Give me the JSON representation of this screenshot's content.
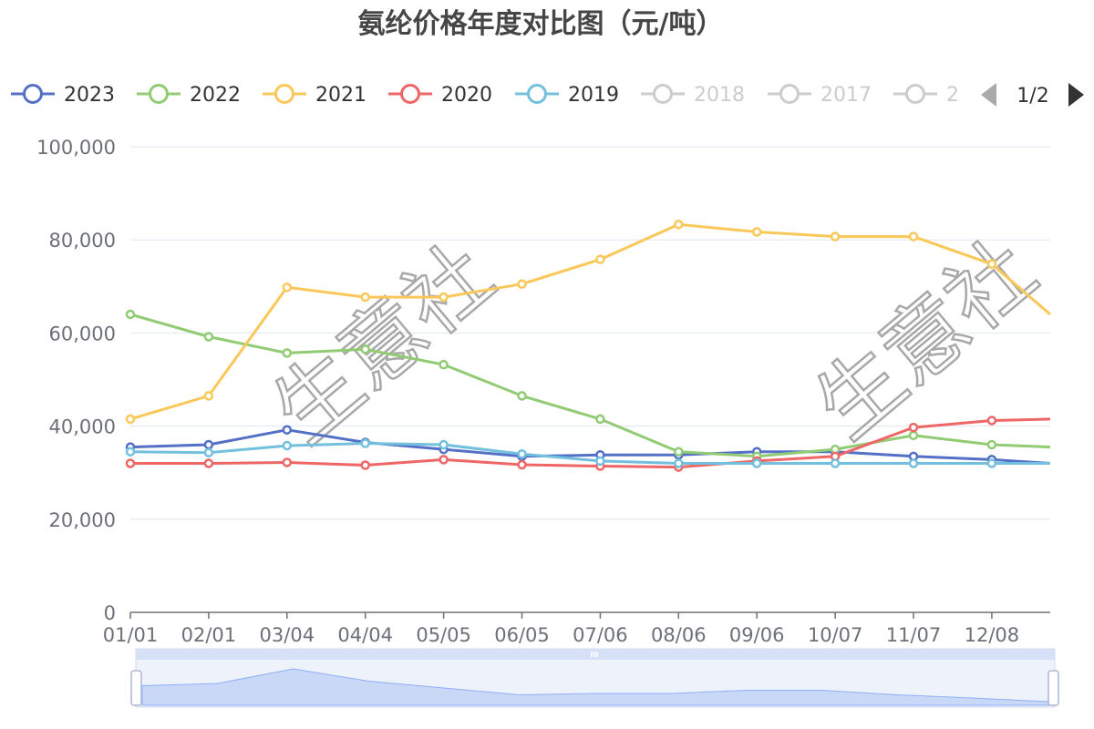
{
  "chart_data": {
    "type": "line",
    "title": "氨纶价格年度对比图（元/吨）",
    "watermark": "生意社",
    "x": [
      "01/01",
      "02/01",
      "03/04",
      "04/04",
      "05/05",
      "06/05",
      "07/06",
      "08/06",
      "09/06",
      "10/07",
      "11/07",
      "12/08"
    ],
    "xlabel": "",
    "ylabel": "",
    "ylim": [
      0,
      100000
    ],
    "yticks": [
      "0",
      "20,000",
      "40,000",
      "60,000",
      "80,000",
      "100,000"
    ],
    "grid": true,
    "legend_position": "top",
    "legend_page": "1/2",
    "legend": [
      {
        "name": "2023",
        "color": "#5470c6",
        "active": true
      },
      {
        "name": "2022",
        "color": "#91cc75",
        "active": true
      },
      {
        "name": "2021",
        "color": "#fac858",
        "active": true
      },
      {
        "name": "2020",
        "color": "#ee6666",
        "active": true
      },
      {
        "name": "2019",
        "color": "#73c0de",
        "active": true
      },
      {
        "name": "2018",
        "color": "#cccccc",
        "active": false
      },
      {
        "name": "2017",
        "color": "#cccccc",
        "active": false
      },
      {
        "name": "2",
        "color": "#cccccc",
        "active": false
      }
    ],
    "series": [
      {
        "name": "2023",
        "color": "#5470c6",
        "values": [
          35500,
          36000,
          39200,
          36500,
          35000,
          33500,
          33800,
          33800,
          34500,
          34500,
          33500,
          32800
        ],
        "end": 32000
      },
      {
        "name": "2022",
        "color": "#91cc75",
        "values": [
          64000,
          59200,
          55700,
          56500,
          53200,
          46500,
          41500,
          34500,
          33500,
          35000,
          38000,
          36000
        ],
        "end": 35500
      },
      {
        "name": "2021",
        "color": "#fac858",
        "values": [
          41500,
          46500,
          69800,
          67700,
          67700,
          70500,
          75800,
          83300,
          81700,
          80700,
          80700,
          74800
        ],
        "end": 64000
      },
      {
        "name": "2020",
        "color": "#ee6666",
        "values": [
          32000,
          32000,
          32200,
          31600,
          32800,
          31700,
          31400,
          31200,
          32500,
          33500,
          39700,
          41200
        ],
        "end": 41500
      },
      {
        "name": "2019",
        "color": "#73c0de",
        "values": [
          34500,
          34300,
          35800,
          36300,
          36000,
          34000,
          32500,
          32000,
          32000,
          32000,
          32000,
          32000
        ],
        "end": 32000
      }
    ]
  }
}
